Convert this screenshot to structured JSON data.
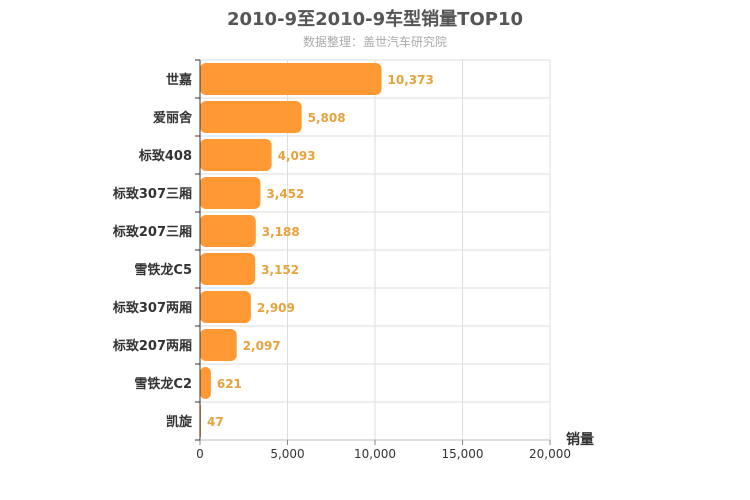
{
  "chart_data": {
    "type": "bar",
    "orientation": "horizontal",
    "title": "2010-9至2010-9车型销量TOP10",
    "subtitle": "数据整理：盖世汽车研究院",
    "xlabel": "销量",
    "categories": [
      "世嘉",
      "爱丽舍",
      "标致408",
      "标致307三厢",
      "标致207三厢",
      "雪铁龙C5",
      "标致307两厢",
      "标致207两厢",
      "雪铁龙C2",
      "凯旋"
    ],
    "values": [
      10373,
      5808,
      4093,
      3452,
      3188,
      3152,
      2909,
      2097,
      621,
      47
    ],
    "value_labels": [
      "10,373",
      "5,808",
      "4,093",
      "3,452",
      "3,188",
      "3,152",
      "2,909",
      "2,097",
      "621",
      "47"
    ],
    "xlim": [
      0,
      20000
    ],
    "xticks": [
      0,
      5000,
      10000,
      15000,
      20000
    ],
    "xtick_labels": [
      "0",
      "5,000",
      "10,000",
      "15,000",
      "20,000"
    ],
    "grid": true,
    "bar_color": "#FF9933",
    "label_color": "#E8A23C"
  }
}
